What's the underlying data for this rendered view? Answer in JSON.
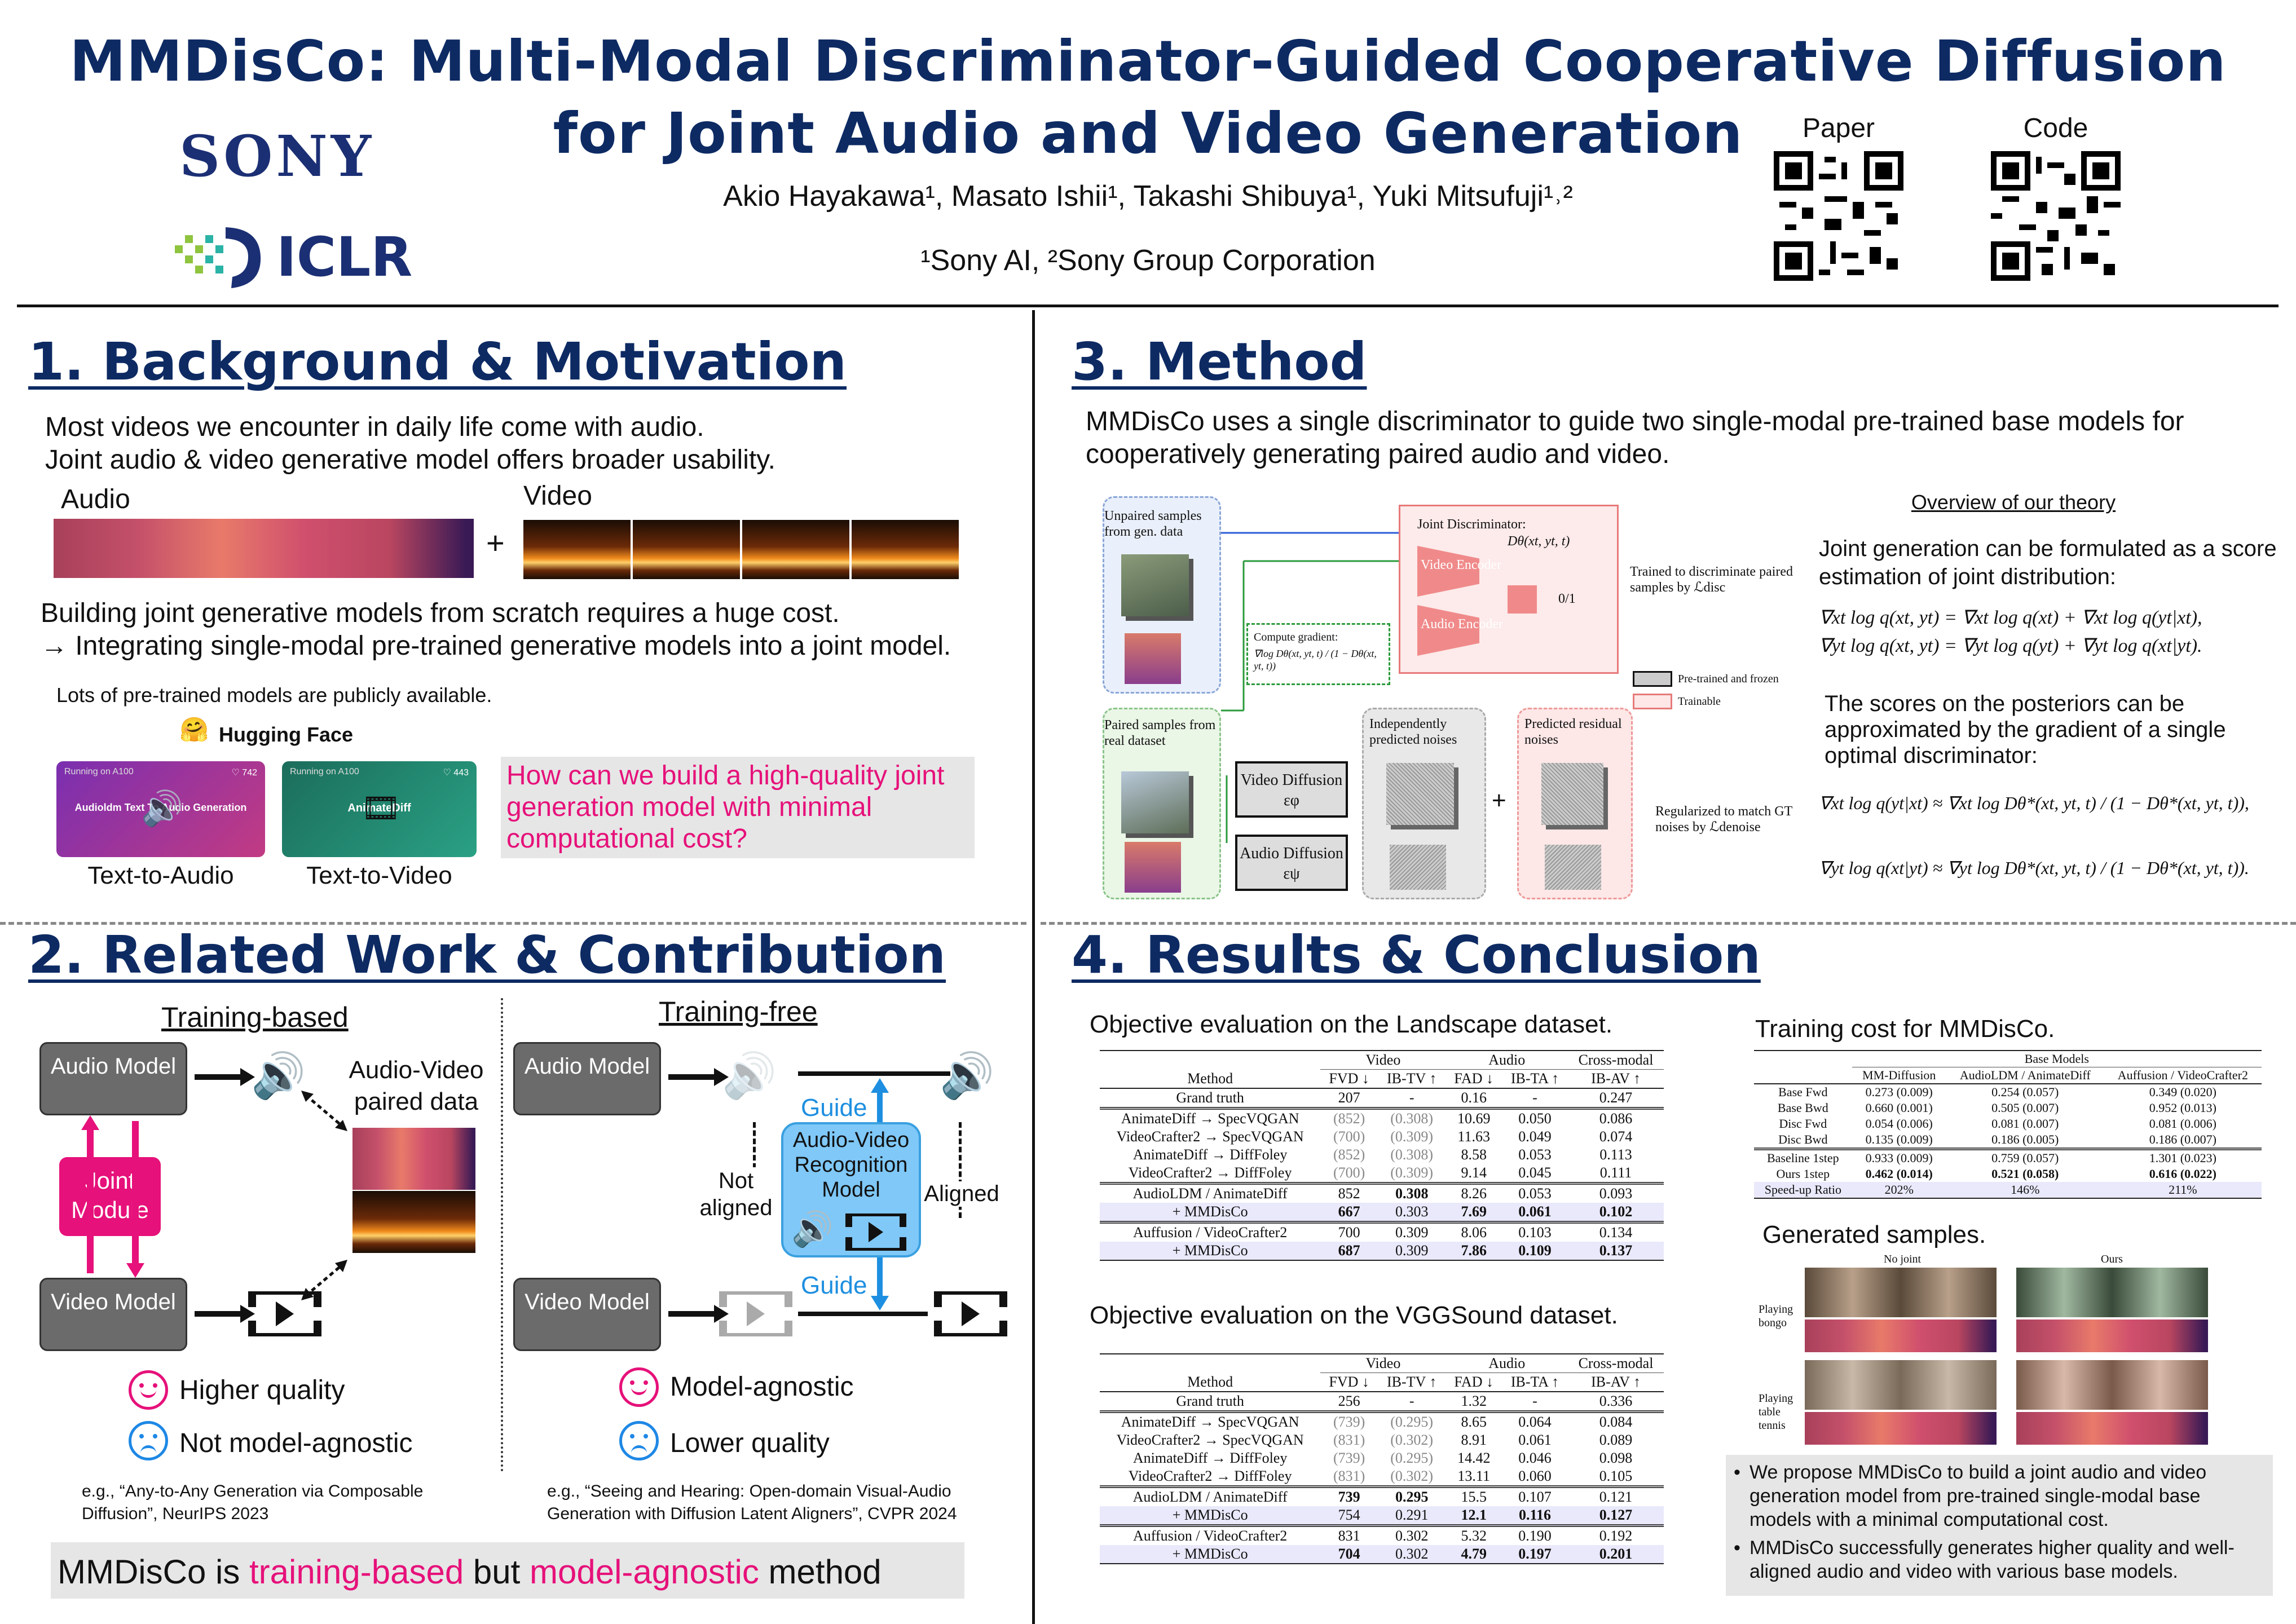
{
  "header": {
    "title_line1": "MMDisCo: Multi-Modal Discriminator-Guided Cooperative Diffusion",
    "title_line2": "for Joint Audio and Video Generation",
    "authors": "Akio Hayakawa¹, Masato Ishii¹, Takashi Shibuya¹, Yuki Mitsufuji¹˒²",
    "affiliations": "¹Sony AI, ²Sony Group Corporation",
    "logo_sony": "SONY",
    "logo_iclr": "ICLR",
    "qr_paper_label": "Paper",
    "qr_code_label": "Code"
  },
  "s1": {
    "title": "1. Background & Motivation",
    "intro_line1": "Most videos we encounter in daily life come with audio.",
    "intro_line2": "Joint audio & video generative model offers broader usability.",
    "audio_label": "Audio",
    "video_label": "Video",
    "plus": "+",
    "cost_line1": "Building joint generative models from scratch requires a huge cost.",
    "cost_line2": "→ Integrating single-modal pre-trained generative models into a joint model.",
    "pretrained_note": "Lots of pre-trained models are publicly available.",
    "hf_label": "Hugging Face",
    "card1_running": "Running on A100",
    "card1_likes": "♡ 742",
    "card1_title": "Audioldm Text To Audio Generation",
    "card2_running": "Running on A100",
    "card2_likes": "♡ 443",
    "card2_title": "AnimateDiff",
    "card1_caption": "Text-to-Audio",
    "card2_caption": "Text-to-Video",
    "question": "How can we build a high-quality joint generation model with minimal computational cost?"
  },
  "s2": {
    "title": "2. Related Work & Contribution",
    "left_head": "Training-based",
    "right_head": "Training-free",
    "audio_model": "Audio Model",
    "video_model": "Video Model",
    "joint_module": "Joint Module",
    "paired_data": "Audio-Video paired data",
    "not_aligned": "Not aligned",
    "aligned": "Aligned",
    "guide": "Guide",
    "recognition_model": "Audio-Video Recognition Model",
    "left_pro": "Higher quality",
    "left_con": "Not model-agnostic",
    "right_pro": "Model-agnostic",
    "right_con": "Lower quality",
    "left_ref": "e.g., “Any-to-Any Generation via Composable Diffusion”, NeurIPS 2023",
    "right_ref": "e.g., “Seeing and Hearing: Open-domain Visual-Audio Generation with Diffusion Latent Aligners”, CVPR 2024",
    "summary_pre": "MMDisCo is ",
    "summary_a": "training-based",
    "summary_mid": " but ",
    "summary_b": "model-agnostic",
    "summary_post": " method"
  },
  "s3": {
    "title": "3. Method",
    "intro_line1": "MMDisCo uses a single discriminator to guide two single-modal pre-trained base models for",
    "intro_line2": "cooperatively generating paired audio and video.",
    "unpaired": "Unpaired samples from gen. data",
    "paired": "Paired samples from real dataset",
    "joint_disc": "Joint Discriminator:",
    "joint_disc_fn": "Dθ(xt, yt, t)",
    "video_enc": "Video Encoder",
    "audio_enc": "Audio Encoder",
    "out01": "0/1",
    "trained_note": "Trained to discriminate paired samples by ℒdisc",
    "compute_grad": "Compute gradient:",
    "compute_grad_fn": "∇log Dθ(xt, yt, t) / (1 − Dθ(xt, yt, t))",
    "legend_frozen": "Pre-trained and frozen",
    "legend_trainable": "Trainable",
    "video_diff": "Video Diffusion εφ",
    "audio_diff": "Audio Diffusion εψ",
    "indep_noise": "Independently predicted noises",
    "resid_noise": "Predicted residual noises",
    "reg_note": "Regularized to match GT noises by ℒdenoise",
    "theory_head": "Overview of our theory",
    "theory_p1": "Joint generation can be formulated as a score estimation of joint distribution:",
    "eq1": "∇xt log q(xt, yt) = ∇xt log q(xt) + ∇xt log q(yt|xt),",
    "eq2": "∇yt log q(xt, yt) = ∇yt log q(yt) + ∇yt log q(xt|yt).",
    "theory_p2": "The scores on the posteriors can be approximated by the gradient of a single optimal discriminator:",
    "eq3": "∇xt log q(yt|xt) ≈ ∇xt log Dθ*(xt, yt, t) / (1 − Dθ*(xt, yt, t)),",
    "eq4": "∇yt log q(xt|yt) ≈ ∇yt log Dθ*(xt, yt, t) / (1 − Dθ*(xt, yt, t))."
  },
  "s4": {
    "title": "4. Results & Conclusion",
    "landscape_caption": "Objective evaluation on the Landscape dataset.",
    "vgg_caption": "Objective evaluation on the VGGSound dataset.",
    "cost_caption": "Training cost for MMDisCo.",
    "gen_caption": "Generated samples.",
    "no_joint": "No joint",
    "ours": "Ours",
    "row1_label": "Playing bongo",
    "row2_label": "Playing table tennis",
    "bullet1": "We propose MMDisCo to build a joint audio and video generation model from pre-trained single-modal base models with a minimal computational cost.",
    "bullet2": "MMDisCo successfully generates higher quality  and well-aligned audio and video with various base models."
  },
  "landscape_table": {
    "group_head": [
      "Video",
      "Audio",
      "Cross-modal"
    ],
    "cols": [
      "Method",
      "FVD ↓",
      "IB-TV ↑",
      "FAD ↓",
      "IB-TA ↑",
      "IB-AV ↑"
    ],
    "rows": [
      [
        "Grand truth",
        "207",
        "-",
        "0.16",
        "-",
        "0.247"
      ],
      [
        "AnimateDiff → SpecVQGAN",
        "(852)",
        "(0.308)",
        "10.69",
        "0.050",
        "0.086"
      ],
      [
        "VideoCrafter2 → SpecVQGAN",
        "(700)",
        "(0.309)",
        "11.63",
        "0.049",
        "0.074"
      ],
      [
        "AnimateDiff → DiffFoley",
        "(852)",
        "(0.308)",
        "8.58",
        "0.053",
        "0.113"
      ],
      [
        "VideoCrafter2 → DiffFoley",
        "(700)",
        "(0.309)",
        "9.14",
        "0.045",
        "0.111"
      ],
      [
        "AudioLDM / AnimateDiff",
        "852",
        "0.308",
        "8.26",
        "0.053",
        "0.093"
      ],
      [
        "+ MMDisCo",
        "667",
        "0.303",
        "7.69",
        "0.061",
        "0.102"
      ],
      [
        "Auffusion / VideoCrafter2",
        "700",
        "0.309",
        "8.06",
        "0.103",
        "0.134"
      ],
      [
        "+ MMDisCo",
        "687",
        "0.309",
        "7.86",
        "0.109",
        "0.137"
      ]
    ]
  },
  "vgg_table": {
    "group_head": [
      "Video",
      "Audio",
      "Cross-modal"
    ],
    "cols": [
      "Method",
      "FVD ↓",
      "IB-TV ↑",
      "FAD ↓",
      "IB-TA ↑",
      "IB-AV ↑"
    ],
    "rows": [
      [
        "Grand truth",
        "256",
        "-",
        "1.32",
        "-",
        "0.336"
      ],
      [
        "AnimateDiff → SpecVQGAN",
        "(739)",
        "(0.295)",
        "8.65",
        "0.064",
        "0.084"
      ],
      [
        "VideoCrafter2 → SpecVQGAN",
        "(831)",
        "(0.302)",
        "8.91",
        "0.061",
        "0.089"
      ],
      [
        "AnimateDiff → DiffFoley",
        "(739)",
        "(0.295)",
        "14.42",
        "0.046",
        "0.098"
      ],
      [
        "VideoCrafter2 → DiffFoley",
        "(831)",
        "(0.302)",
        "13.11",
        "0.060",
        "0.105"
      ],
      [
        "AudioLDM / AnimateDiff",
        "739",
        "0.295",
        "15.5",
        "0.107",
        "0.121"
      ],
      [
        "+ MMDisCo",
        "754",
        "0.291",
        "12.1",
        "0.116",
        "0.127"
      ],
      [
        "Auffusion / VideoCrafter2",
        "831",
        "0.302",
        "5.32",
        "0.190",
        "0.192"
      ],
      [
        "+ MMDisCo",
        "704",
        "0.302",
        "4.79",
        "0.197",
        "0.201"
      ]
    ]
  },
  "cost_table": {
    "group_head": "Base Models",
    "cols": [
      "",
      "MM-Diffusion",
      "AudioLDM / AnimateDiff",
      "Auffusion / VideoCrafter2"
    ],
    "rows": [
      [
        "Base Fwd",
        "0.273 (0.009)",
        "0.254 (0.057)",
        "0.349 (0.020)"
      ],
      [
        "Base Bwd",
        "0.660 (0.001)",
        "0.505 (0.007)",
        "0.952 (0.013)"
      ],
      [
        "Disc Fwd",
        "0.054 (0.006)",
        "0.081 (0.007)",
        "0.081 (0.006)"
      ],
      [
        "Disc Bwd",
        "0.135 (0.009)",
        "0.186 (0.005)",
        "0.186 (0.007)"
      ],
      [
        "Baseline 1step",
        "0.933 (0.009)",
        "0.759 (0.057)",
        "1.301 (0.023)"
      ],
      [
        "Ours 1step",
        "0.462 (0.014)",
        "0.521 (0.058)",
        "0.616 (0.022)"
      ],
      [
        "Speed-up Ratio",
        "202%",
        "146%",
        "211%"
      ]
    ]
  }
}
